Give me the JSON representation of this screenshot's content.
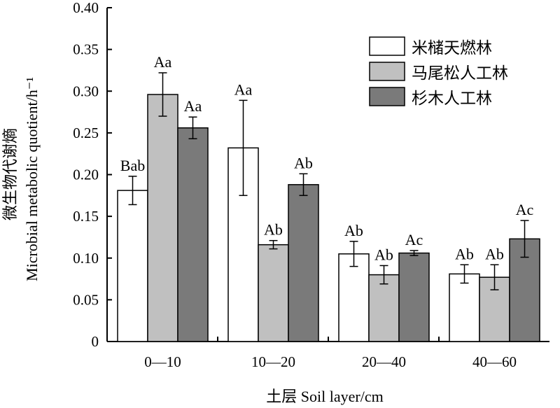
{
  "chart_data": {
    "type": "bar",
    "ylabel_zh": "微生物代谢熵",
    "ylabel_en": "Microbial metabolic quotient/h⁻¹",
    "xlabel": "土层 Soil layer/cm",
    "categories": [
      "0—10",
      "10—20",
      "20—40",
      "40—60"
    ],
    "ylim": [
      0,
      0.4
    ],
    "yticks": [
      "0",
      "0.05",
      "0.10",
      "0.15",
      "0.20",
      "0.25",
      "0.30",
      "0.35",
      "0.40"
    ],
    "ytick_values": [
      0,
      0.05,
      0.1,
      0.15,
      0.2,
      0.25,
      0.3,
      0.35,
      0.4
    ],
    "legend_position": "top-right",
    "grid": false,
    "series": [
      {
        "name": "米槠天燃林",
        "color": "#ffffff",
        "values": [
          0.181,
          0.232,
          0.105,
          0.081
        ],
        "errors": [
          0.017,
          0.057,
          0.015,
          0.011
        ],
        "labels": [
          "Bab",
          "Aa",
          "Ab",
          "Ab"
        ]
      },
      {
        "name": "马尾松人工林",
        "color": "#c0c0c0",
        "values": [
          0.296,
          0.116,
          0.08,
          0.077
        ],
        "errors": [
          0.026,
          0.005,
          0.011,
          0.015
        ],
        "labels": [
          "Aa",
          "Ab",
          "Ab",
          "Ab"
        ]
      },
      {
        "name": "杉木人工林",
        "color": "#7a7a7a",
        "values": [
          0.256,
          0.188,
          0.106,
          0.123
        ],
        "errors": [
          0.013,
          0.013,
          0.003,
          0.022
        ],
        "labels": [
          "Aa",
          "Ab",
          "Ac",
          "Ac"
        ]
      }
    ]
  }
}
